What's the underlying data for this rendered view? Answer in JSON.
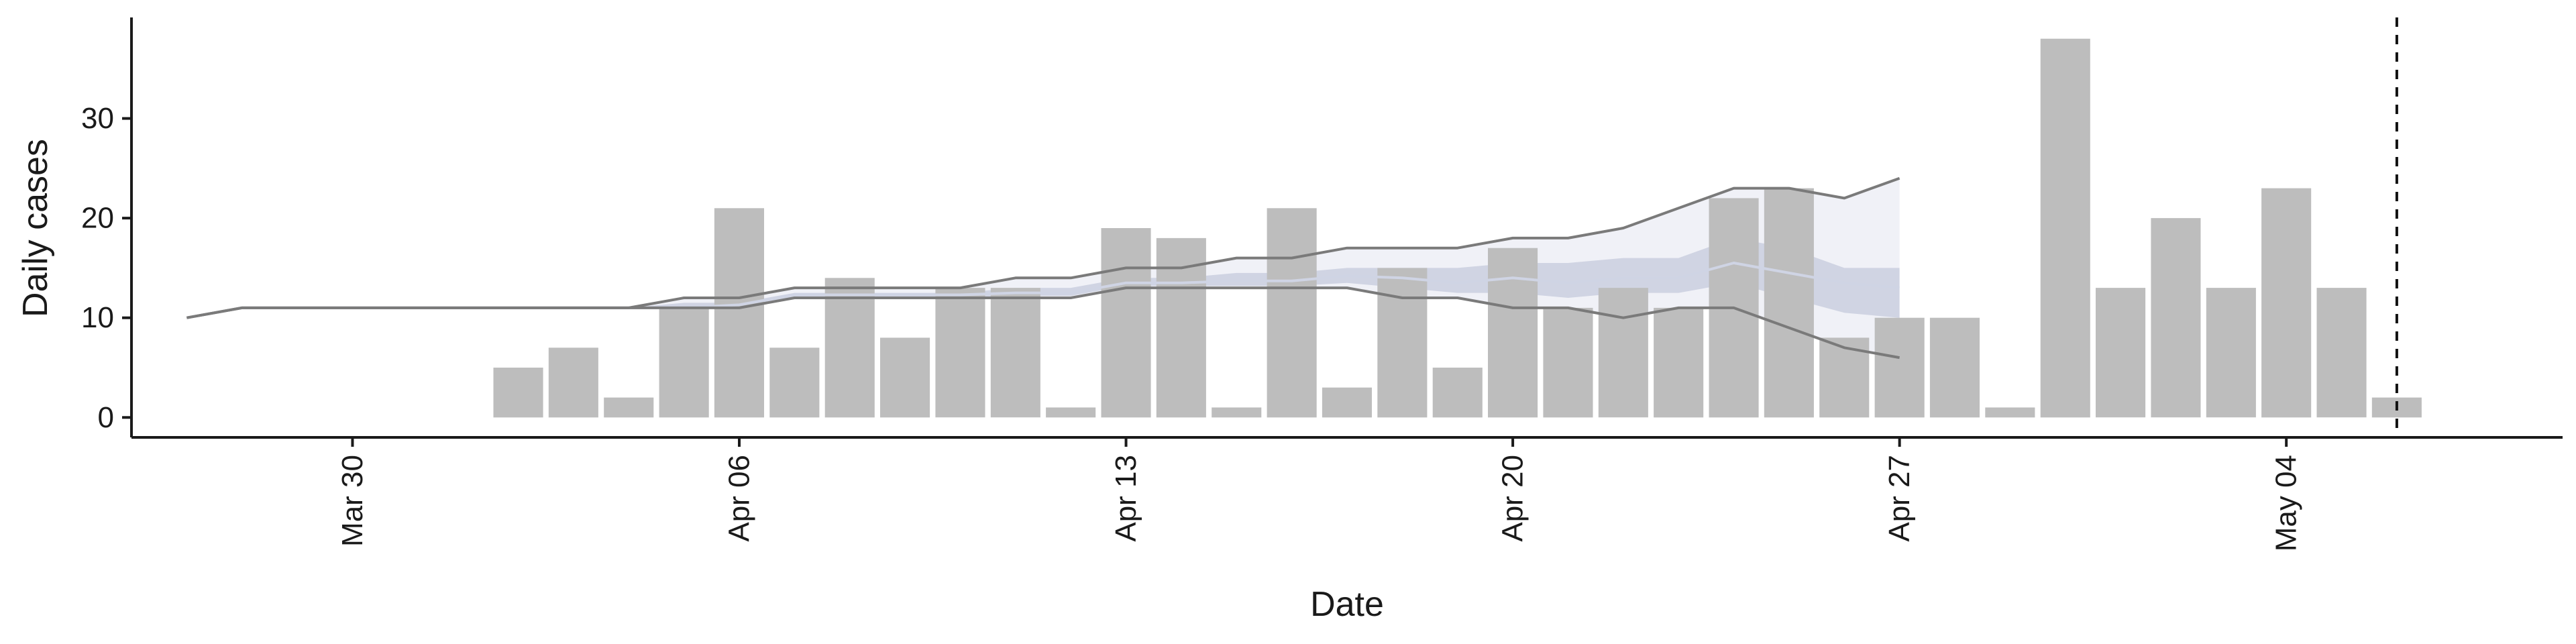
{
  "chart_data": {
    "type": "bar",
    "xlabel": "Date",
    "ylabel": "Daily cases",
    "x_ticks": [
      {
        "date": "2020-03-30",
        "label": "Mar 30"
      },
      {
        "date": "2020-04-06",
        "label": "Apr 06"
      },
      {
        "date": "2020-04-13",
        "label": "Apr 13"
      },
      {
        "date": "2020-04-20",
        "label": "Apr 20"
      },
      {
        "date": "2020-04-27",
        "label": "Apr 27"
      },
      {
        "date": "2020-05-04",
        "label": "May 04"
      }
    ],
    "y_ticks": [
      0,
      10,
      20,
      30
    ],
    "xlim": [
      "2020-03-26",
      "2020-05-09"
    ],
    "ylim": [
      -2,
      40
    ],
    "grid": false,
    "reference_line": {
      "date": "2020-05-06",
      "style": "dashed"
    },
    "bars": [
      {
        "date": "2020-04-02",
        "value": 5
      },
      {
        "date": "2020-04-03",
        "value": 7
      },
      {
        "date": "2020-04-04",
        "value": 2
      },
      {
        "date": "2020-04-05",
        "value": 11
      },
      {
        "date": "2020-04-06",
        "value": 21
      },
      {
        "date": "2020-04-07",
        "value": 7
      },
      {
        "date": "2020-04-08",
        "value": 14
      },
      {
        "date": "2020-04-09",
        "value": 8
      },
      {
        "date": "2020-04-10",
        "value": 13
      },
      {
        "date": "2020-04-11",
        "value": 13
      },
      {
        "date": "2020-04-12",
        "value": 1
      },
      {
        "date": "2020-04-13",
        "value": 19
      },
      {
        "date": "2020-04-14",
        "value": 18
      },
      {
        "date": "2020-04-15",
        "value": 1
      },
      {
        "date": "2020-04-16",
        "value": 21
      },
      {
        "date": "2020-04-17",
        "value": 3
      },
      {
        "date": "2020-04-18",
        "value": 15
      },
      {
        "date": "2020-04-19",
        "value": 5
      },
      {
        "date": "2020-04-20",
        "value": 17
      },
      {
        "date": "2020-04-21",
        "value": 11
      },
      {
        "date": "2020-04-22",
        "value": 13
      },
      {
        "date": "2020-04-23",
        "value": 11
      },
      {
        "date": "2020-04-24",
        "value": 22
      },
      {
        "date": "2020-04-25",
        "value": 23
      },
      {
        "date": "2020-04-26",
        "value": 8
      },
      {
        "date": "2020-04-27",
        "value": 10
      },
      {
        "date": "2020-04-28",
        "value": 10
      },
      {
        "date": "2020-04-29",
        "value": 1
      },
      {
        "date": "2020-04-30",
        "value": 38
      },
      {
        "date": "2020-05-01",
        "value": 13
      },
      {
        "date": "2020-05-02",
        "value": 20
      },
      {
        "date": "2020-05-03",
        "value": 13
      },
      {
        "date": "2020-05-04",
        "value": 23
      },
      {
        "date": "2020-05-05",
        "value": 13
      },
      {
        "date": "2020-05-06",
        "value": 2
      }
    ],
    "estimate": {
      "dates": [
        "2020-03-27",
        "2020-03-28",
        "2020-03-29",
        "2020-03-30",
        "2020-03-31",
        "2020-04-01",
        "2020-04-02",
        "2020-04-03",
        "2020-04-04",
        "2020-04-05",
        "2020-04-06",
        "2020-04-07",
        "2020-04-08",
        "2020-04-09",
        "2020-04-10",
        "2020-04-11",
        "2020-04-12",
        "2020-04-13",
        "2020-04-14",
        "2020-04-15",
        "2020-04-16",
        "2020-04-17",
        "2020-04-18",
        "2020-04-19",
        "2020-04-20",
        "2020-04-21",
        "2020-04-22",
        "2020-04-23",
        "2020-04-24",
        "2020-04-25",
        "2020-04-26",
        "2020-04-27"
      ],
      "upper_90": [
        10,
        11,
        11,
        11,
        11,
        11,
        11,
        11,
        11,
        12,
        12,
        13,
        13,
        13,
        13,
        14,
        14,
        15,
        15,
        16,
        16,
        17,
        17,
        17,
        18,
        18,
        19,
        21,
        23,
        23,
        22,
        24
      ],
      "upper_50": [
        10,
        11,
        11,
        11,
        11,
        11,
        11,
        11,
        11,
        11.5,
        11.5,
        12.5,
        12.5,
        12.5,
        12.5,
        13,
        13,
        14,
        14,
        14.5,
        14.5,
        15,
        15,
        15,
        15.5,
        15.5,
        16,
        16,
        18,
        17,
        15,
        15
      ],
      "median": [
        10,
        11,
        11,
        11,
        11,
        11,
        11,
        11,
        11,
        11,
        11.3,
        12.3,
        12.3,
        12.3,
        12.3,
        12.5,
        12.5,
        13.5,
        13.5,
        13.7,
        13.7,
        14.2,
        14,
        13.5,
        14,
        13.5,
        14,
        14,
        15.5,
        14.5,
        13.5,
        13
      ],
      "lower_50": [
        10,
        11,
        11,
        11,
        11,
        11,
        11,
        11,
        11,
        11,
        11,
        12,
        12,
        12,
        12,
        12.2,
        12.2,
        13.2,
        13.2,
        13.2,
        13.2,
        13.5,
        13,
        12.5,
        12.5,
        12,
        12.5,
        12.5,
        13.5,
        12,
        10.5,
        10
      ],
      "lower_90": [
        10,
        11,
        11,
        11,
        11,
        11,
        11,
        11,
        11,
        11,
        11,
        12,
        12,
        12,
        12,
        12,
        12,
        13,
        13,
        13,
        13,
        13,
        12,
        12,
        11,
        11,
        10,
        11,
        11,
        9,
        7,
        6
      ]
    },
    "colors": {
      "bar": "#bdbdbd",
      "ribbon_90": "#eef0f6",
      "ribbon_50": "#c2c8da",
      "median": "#cfd4e4",
      "bound_line": "#7a7a7a",
      "axis": "#1a1a1a"
    }
  }
}
